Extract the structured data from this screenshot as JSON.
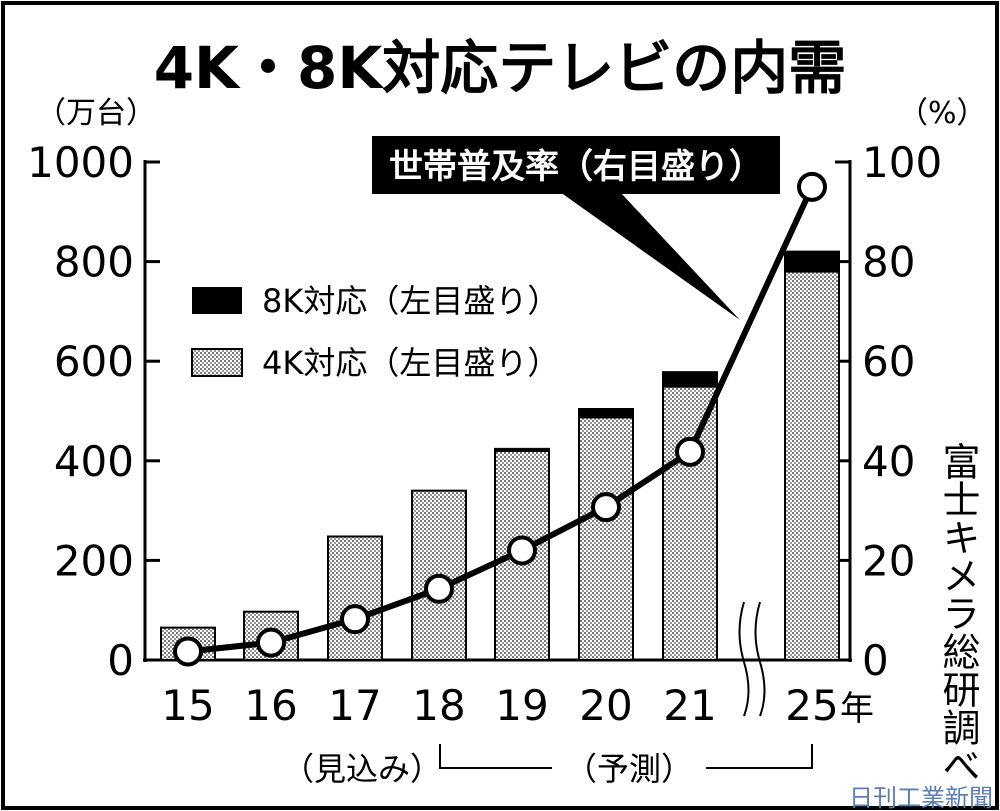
{
  "chart_data": {
    "type": "bar",
    "title": "4K・8K対応テレビの内需",
    "left_unit": "（万台）",
    "right_unit": "（%）",
    "categories": [
      "15",
      "16",
      "17",
      "18",
      "19",
      "20",
      "21",
      "25"
    ],
    "x_suffix": "年",
    "left_axis": {
      "ylim": [
        0,
        1000
      ],
      "ticks": [
        "0",
        "200",
        "400",
        "600",
        "800",
        "1000"
      ]
    },
    "right_axis": {
      "ylim": [
        0,
        100
      ],
      "ticks": [
        "0",
        "20",
        "40",
        "60",
        "80",
        "100"
      ]
    },
    "series": [
      {
        "name": "4K対応（左目盛り）",
        "axis": "left",
        "kind": "stacked-bar",
        "color": "#bbbbbb",
        "values": [
          65,
          97,
          248,
          340,
          420,
          487,
          549,
          780
        ]
      },
      {
        "name": "8K対応（左目盛り）",
        "axis": "left",
        "kind": "stacked-bar",
        "color": "#000000",
        "values": [
          0,
          0,
          0,
          0,
          4,
          17,
          29,
          40
        ]
      },
      {
        "name": "世帯普及率（右目盛り）",
        "axis": "right",
        "kind": "line",
        "color": "#000000",
        "values": [
          1.7,
          3.5,
          8.2,
          14.3,
          22.0,
          30.7,
          41.8,
          95.0
        ]
      }
    ],
    "annotations": {
      "estimate_label": "（見込み）",
      "forecast_label": "（予測）",
      "source": "富士キメラ総研調べ",
      "credit": "日刊工業新聞"
    }
  }
}
